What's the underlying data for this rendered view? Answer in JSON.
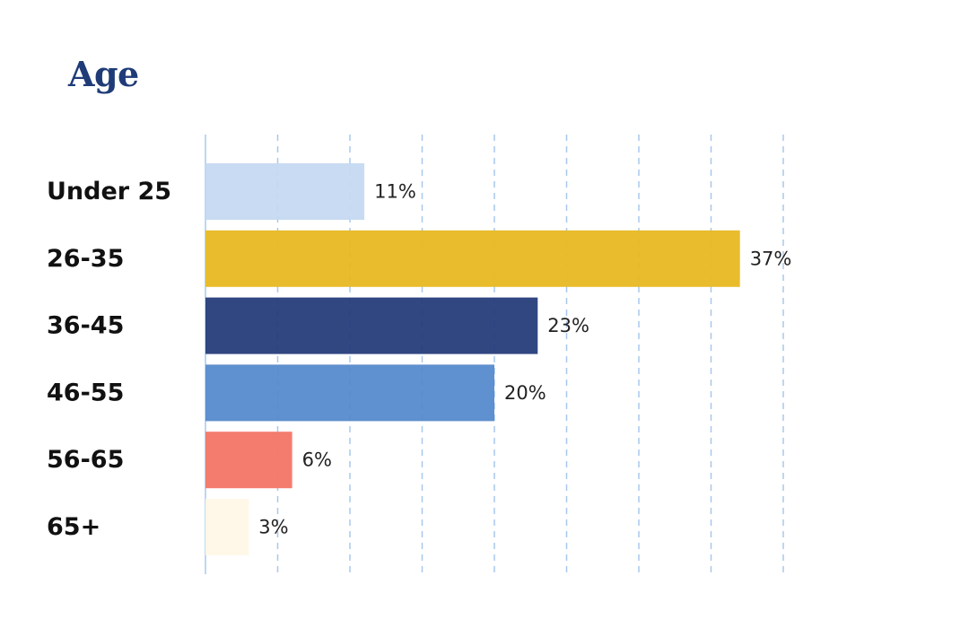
{
  "chart_data": {
    "type": "bar",
    "orientation": "horizontal",
    "title": "Age",
    "categories": [
      "Under 25",
      "26-35",
      "36-45",
      "46-55",
      "56-65",
      "65+"
    ],
    "values": [
      11,
      37,
      23,
      20,
      6,
      3
    ],
    "value_labels": [
      "11%",
      "37%",
      "23%",
      "20%",
      "6%",
      "3%"
    ],
    "colors": [
      "#c5d9f1",
      "#e8b820",
      "#233b7a",
      "#5589cc",
      "#f27466",
      "#fff8e8"
    ],
    "xlabel": "",
    "ylabel": "",
    "xlim": [
      0,
      40
    ],
    "grid": true,
    "grid_color": "#a8c8ee",
    "legend": "none"
  }
}
